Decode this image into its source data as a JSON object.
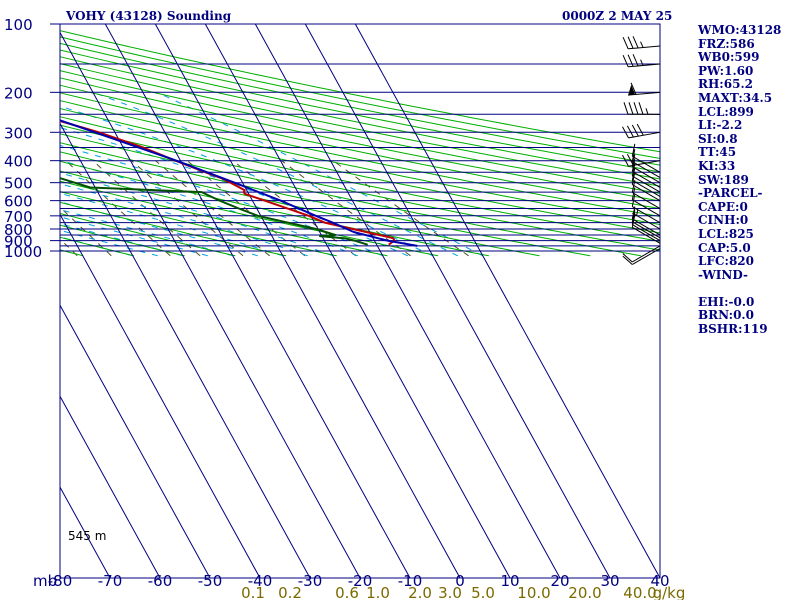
{
  "header": {
    "station": "VOHY (43128) Sounding",
    "datetime": "0000Z  2 MAY 25"
  },
  "elevation_label": "545 m",
  "indices": [
    "WMO:43128",
    "FRZ:586",
    "WB0:599",
    "PW:1.60",
    "RH:65.2",
    "MAXT:34.5",
    "LCL:899",
    "LI:-2.2",
    "SI:0.8",
    "TT:45",
    "KI:33",
    "SW:189",
    "-PARCEL-",
    "CAPE:0",
    "CINH:0",
    "LCL:825",
    "CAP:5.0",
    "LFC:820",
    "-WIND-",
    "",
    "EHI:-0.0",
    "BRN:0.0",
    "BSHR:119"
  ],
  "colors": {
    "isobar": "#000080",
    "isotherm": "#000080",
    "dry_adiabat": "#00b000",
    "moist_adiabat": "#00a0e0",
    "mixing_ratio": "#505020",
    "temperature": "#c00000",
    "dewpoint": "#005000",
    "parcel": "#0000b0",
    "mixing_ratio_labels": "#7a6a00",
    "axis_labels": "#000080"
  },
  "chart_data": {
    "type": "skew-t",
    "title": "VOHY (43128) Sounding",
    "xlabel": "",
    "ylabel": "mb",
    "pressure_ticks": [
      100,
      200,
      300,
      400,
      500,
      600,
      700,
      800,
      900,
      1000
    ],
    "temperature_ticks": [
      -80,
      -70,
      -60,
      -50,
      -40,
      -30,
      -20,
      -10,
      0,
      10,
      20,
      30,
      40
    ],
    "mixing_ratio_labels": [
      "0.1",
      "0.2",
      "0.6",
      "1.0",
      "2.0",
      "3.0",
      "5.0",
      "10.0",
      "20.0",
      "40.0",
      "g/kg"
    ],
    "pressure_range": [
      100,
      1050
    ],
    "temperature_range": [
      -80,
      40
    ],
    "series": [
      {
        "name": "temperature",
        "points": [
          {
            "p": 938,
            "t": 22.4
          },
          {
            "p": 900,
            "t": 24.0
          },
          {
            "p": 878,
            "t": 24.0
          },
          {
            "p": 850,
            "t": 21.6
          },
          {
            "p": 750,
            "t": 12.0
          },
          {
            "p": 700,
            "t": 9.6
          },
          {
            "p": 600,
            "t": 2.4
          },
          {
            "p": 560,
            "t": -0.8
          },
          {
            "p": 550,
            "t": -0.8
          },
          {
            "p": 540,
            "t": -0.4
          },
          {
            "p": 500,
            "t": -2.4
          },
          {
            "p": 480,
            "t": -3.6
          },
          {
            "p": 460,
            "t": -5.4
          },
          {
            "p": 400,
            "t": -11.0
          },
          {
            "p": 350,
            "t": -16.0
          },
          {
            "p": 300,
            "t": -23.2
          },
          {
            "p": 250,
            "t": -33.6
          },
          {
            "p": 200,
            "t": -44.4
          },
          {
            "p": 150,
            "t": -56.0
          },
          {
            "p": 120,
            "t": -66.4
          },
          {
            "p": 100,
            "t": -75.4
          }
        ]
      },
      {
        "name": "dewpoint",
        "points": [
          {
            "p": 938,
            "t": 18.2
          },
          {
            "p": 900,
            "t": 16.0
          },
          {
            "p": 880,
            "t": 14.4
          },
          {
            "p": 860,
            "t": 9.6
          },
          {
            "p": 850,
            "t": 12.8
          },
          {
            "p": 800,
            "t": 9.6
          },
          {
            "p": 700,
            "t": -0.6
          },
          {
            "p": 650,
            "t": -3.6
          },
          {
            "p": 600,
            "t": -6.6
          },
          {
            "p": 550,
            "t": -9.2
          },
          {
            "p": 525,
            "t": -31.0
          },
          {
            "p": 480,
            "t": -35.8
          },
          {
            "p": 400,
            "t": -43.4
          },
          {
            "p": 300,
            "t": -56.6
          },
          {
            "p": 250,
            "t": -65.0
          },
          {
            "p": 200,
            "t": -71.0
          },
          {
            "p": 150,
            "t": -81.0
          }
        ]
      },
      {
        "name": "parcel",
        "points": [
          {
            "p": 950,
            "t": 28.0
          },
          {
            "p": 900,
            "t": 22.6
          },
          {
            "p": 825,
            "t": 16.8
          },
          {
            "p": 750,
            "t": 13.6
          },
          {
            "p": 700,
            "t": 11.0
          },
          {
            "p": 600,
            "t": 5.6
          },
          {
            "p": 500,
            "t": -1.6
          },
          {
            "p": 400,
            "t": -10.8
          },
          {
            "p": 300,
            "t": -24.0
          },
          {
            "p": 250,
            "t": -32.5
          },
          {
            "p": 200,
            "t": -43.0
          },
          {
            "p": 150,
            "t": -58.0
          },
          {
            "p": 120,
            "t": -69.0
          }
        ]
      }
    ],
    "wind_barbs": [
      {
        "p": 975,
        "dir": 240,
        "spd": 10
      },
      {
        "p": 950,
        "dir": 240,
        "spd": 10
      },
      {
        "p": 925,
        "dir": 300,
        "spd": 10
      },
      {
        "p": 900,
        "dir": 300,
        "spd": 10
      },
      {
        "p": 875,
        "dir": 300,
        "spd": 10
      },
      {
        "p": 850,
        "dir": 300,
        "spd": 10
      },
      {
        "p": 800,
        "dir": 300,
        "spd": 5
      },
      {
        "p": 750,
        "dir": 300,
        "spd": 10
      },
      {
        "p": 700,
        "dir": 300,
        "spd": 10
      },
      {
        "p": 650,
        "dir": 300,
        "spd": 10
      },
      {
        "p": 600,
        "dir": 300,
        "spd": 10
      },
      {
        "p": 575,
        "dir": 300,
        "spd": 10
      },
      {
        "p": 550,
        "dir": 300,
        "spd": 10
      },
      {
        "p": 525,
        "dir": 300,
        "spd": 10
      },
      {
        "p": 500,
        "dir": 300,
        "spd": 10
      },
      {
        "p": 475,
        "dir": 300,
        "spd": 10
      },
      {
        "p": 450,
        "dir": 300,
        "spd": 10
      },
      {
        "p": 400,
        "dir": 260,
        "spd": 20
      },
      {
        "p": 300,
        "dir": 260,
        "spd": 40
      },
      {
        "p": 250,
        "dir": 270,
        "spd": 45
      },
      {
        "p": 200,
        "dir": 265,
        "spd": 60
      },
      {
        "p": 150,
        "dir": 265,
        "spd": 35
      },
      {
        "p": 125,
        "dir": 265,
        "spd": 35
      }
    ]
  }
}
